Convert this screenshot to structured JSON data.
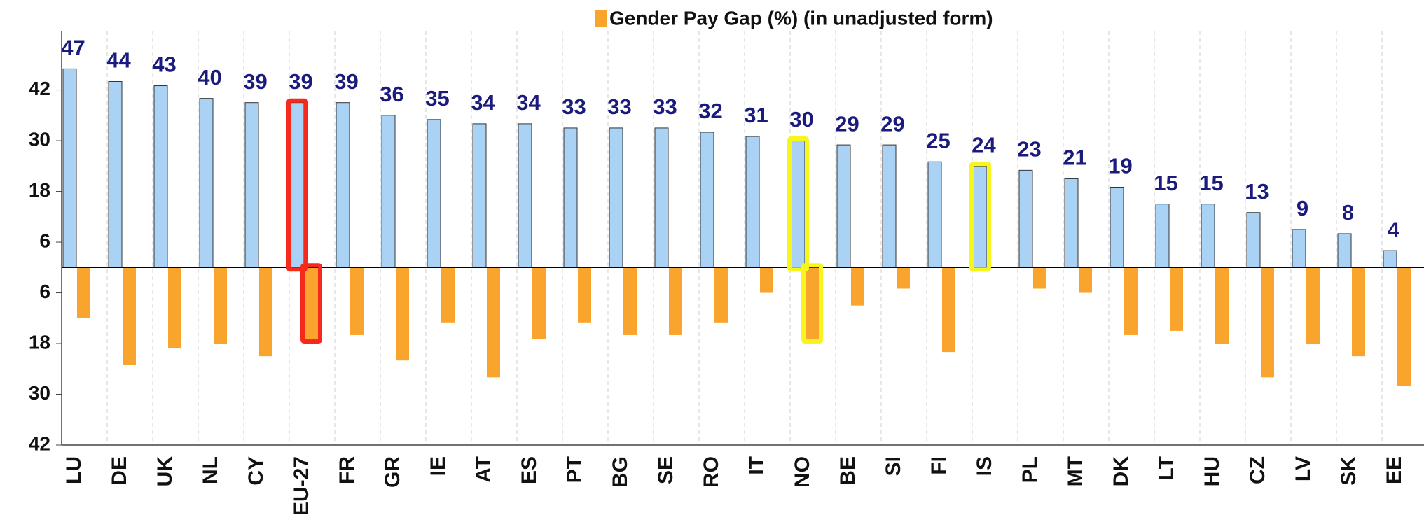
{
  "chart_data": {
    "type": "bar",
    "categories": [
      "LU",
      "DE",
      "UK",
      "NL",
      "CY",
      "EU-27",
      "FR",
      "GR",
      "IE",
      "AT",
      "ES",
      "PT",
      "BG",
      "SE",
      "RO",
      "IT",
      "NO",
      "BE",
      "SI",
      "FI",
      "IS",
      "PL",
      "MT",
      "DK",
      "LT",
      "HU",
      "CZ",
      "LV",
      "SK",
      "EE"
    ],
    "series": [
      {
        "color": "#a9d2f5",
        "direction": "up",
        "show_labels": true,
        "values": [
          47,
          44,
          43,
          40,
          39,
          39,
          39,
          36,
          35,
          34,
          34,
          33,
          33,
          33,
          32,
          31,
          30,
          29,
          29,
          25,
          24,
          23,
          21,
          19,
          15,
          15,
          13,
          9,
          8,
          4
        ]
      },
      {
        "name": "Gender Pay Gap (%) (in unadjusted form)",
        "color": "#f9a42c",
        "direction": "down",
        "show_labels": false,
        "values": [
          12,
          23,
          19,
          18,
          21,
          17,
          16,
          22,
          13,
          26,
          17,
          13,
          16,
          16,
          13,
          6,
          17,
          9,
          5,
          20,
          null,
          5,
          6,
          16,
          15,
          18,
          26,
          18,
          21,
          28
        ]
      }
    ],
    "highlights": [
      {
        "category": "EU-27",
        "color": "#f52a1c"
      },
      {
        "category": "NO",
        "color": "#f7f51e"
      },
      {
        "category": "IS",
        "color": "#f7f51e"
      }
    ],
    "ylim": [
      -42,
      56
    ],
    "yticks": [
      42,
      30,
      18,
      6,
      {
        "value": -6,
        "label": "6"
      },
      {
        "value": -18,
        "label": "18"
      },
      {
        "value": -30,
        "label": "30"
      },
      {
        "value": -42,
        "label": "42"
      }
    ],
    "legend": "top"
  }
}
